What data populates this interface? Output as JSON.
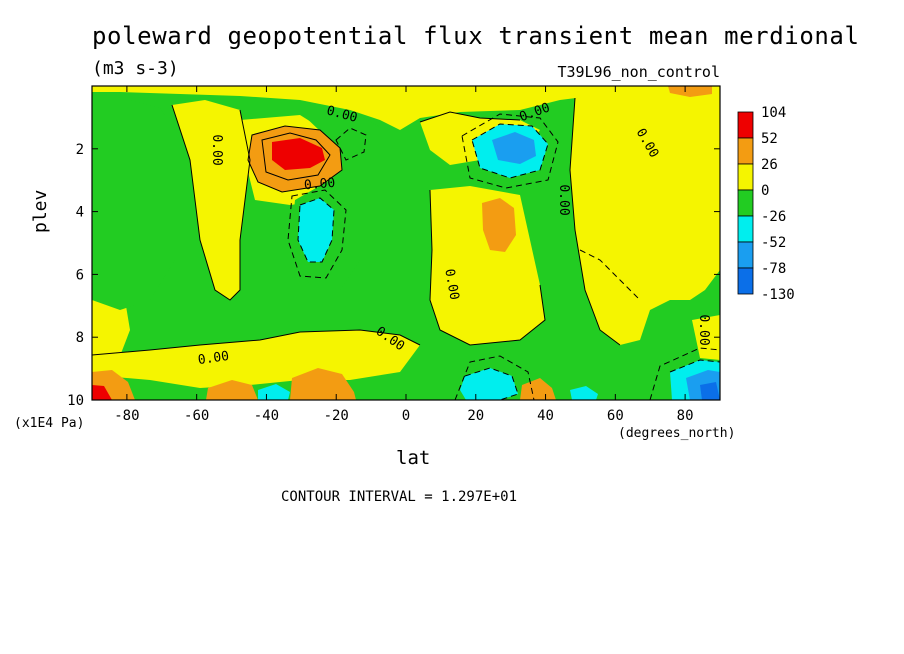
{
  "chart_data": {
    "type": "heatmap",
    "title": "poleward geopotential flux transient mean merdional",
    "units": "(m3 s-3)",
    "run_label": "T39L96_non_control",
    "xlabel": "lat",
    "x_units": "(degrees_north)",
    "ylabel": "plev",
    "y_units": "(x1E4 Pa)",
    "xlim": [
      -90,
      90
    ],
    "ylim": [
      10,
      0
    ],
    "x_ticks": [
      -80,
      -60,
      -40,
      -20,
      0,
      20,
      40,
      60,
      80
    ],
    "x_tick_labels": [
      "-80",
      "-60",
      "-40",
      "-20",
      "0",
      "20",
      "40",
      "60",
      "80"
    ],
    "y_ticks": [
      2,
      4,
      6,
      8,
      10
    ],
    "y_tick_labels": [
      "2",
      "4",
      "6",
      "8",
      "10"
    ],
    "contour_interval_text": "CONTOUR INTERVAL = 1.297E+01",
    "contour_labels": [
      "0.00"
    ],
    "legend": {
      "position": "right",
      "levels": [
        "104",
        "52",
        "26",
        "0",
        "-26",
        "-52",
        "-78",
        "-130"
      ],
      "colors": [
        "#ee0000",
        "#f39c12",
        "#f5f500",
        "#22cc22",
        "#00eeee",
        "#1a9ef0",
        "#0b6fe8"
      ]
    },
    "features": [
      {
        "lat": -33,
        "plev": 2.4,
        "value": 90,
        "sign": "positive"
      },
      {
        "lat": -23,
        "plev": 4.6,
        "value": -45,
        "sign": "negative"
      },
      {
        "lat": 33,
        "plev": 2.4,
        "value": -55,
        "sign": "negative"
      },
      {
        "lat": 26,
        "plev": 4.4,
        "value": 35,
        "sign": "positive"
      },
      {
        "lat": -84,
        "plev": 9.8,
        "value": 80,
        "sign": "positive"
      },
      {
        "lat": -50,
        "plev": 9.8,
        "value": 45,
        "sign": "positive"
      },
      {
        "lat": -25,
        "plev": 9.6,
        "value": 45,
        "sign": "positive"
      },
      {
        "lat": 22,
        "plev": 9.6,
        "value": -45,
        "sign": "negative"
      },
      {
        "lat": 38,
        "plev": 9.8,
        "value": 40,
        "sign": "positive"
      },
      {
        "lat": 82,
        "plev": 9.6,
        "value": -80,
        "sign": "negative"
      }
    ]
  }
}
